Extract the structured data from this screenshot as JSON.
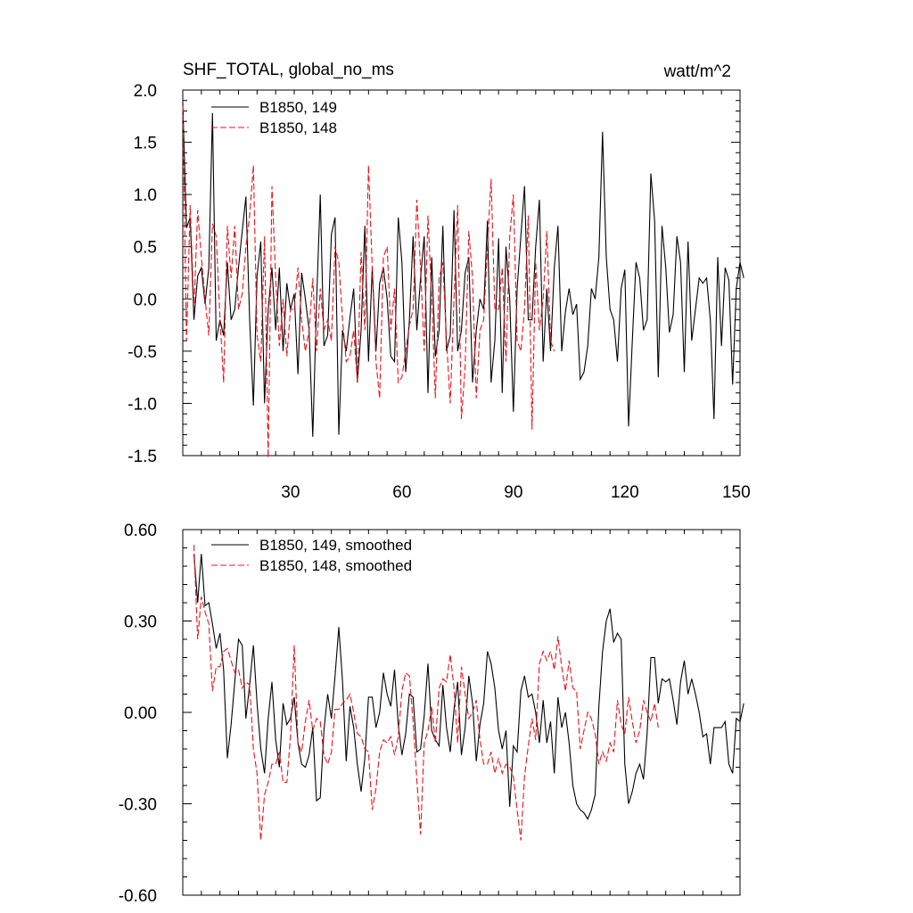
{
  "chart_data": [
    {
      "type": "line",
      "title": "SHF_TOTAL, global_no_ms",
      "units": "watt/m^2",
      "xlim": [
        1,
        151
      ],
      "ylim": [
        -1.5,
        2.0
      ],
      "xticks": [
        30,
        60,
        90,
        120,
        150
      ],
      "xtick_labels": [
        "30",
        "60",
        "90",
        "120",
        "150"
      ],
      "yticks": [
        2.0,
        1.5,
        1.0,
        0.5,
        0.0,
        -0.5,
        -1.0,
        -1.5
      ],
      "ytick_labels": [
        "2.0",
        "1.5",
        "1.0",
        "0.5",
        "0.0",
        "-0.5",
        "-1.0",
        "-1.5"
      ],
      "legend_position": "top-left",
      "series": [
        {
          "name": "B1850, 149",
          "color": "#000000",
          "style": "solid",
          "x0": 1,
          "values": [
            1.88,
            0.68,
            0.78,
            -0.2,
            0.22,
            0.3,
            -0.05,
            0.3,
            1.78,
            -0.4,
            -0.2,
            -0.35,
            0.35,
            -0.2,
            -0.1,
            0.3,
            0.65,
            0.98,
            -0.2,
            -1.02,
            0.22,
            0.55,
            -1.0,
            -0.1,
            0.3,
            -0.3,
            0.3,
            -0.5,
            0.15,
            -0.1,
            0.05,
            -0.72,
            0.25,
            0.0,
            -0.3,
            -1.32,
            -0.05,
            1.0,
            -0.45,
            -0.35,
            0.62,
            0.78,
            -1.3,
            -0.3,
            -0.5,
            -0.18,
            0.1,
            -0.8,
            -0.3,
            0.7,
            -0.6,
            0.3,
            -0.5,
            0.15,
            0.3,
            0.0,
            -0.55,
            -0.6,
            0.78,
            0.35,
            -0.7,
            -0.2,
            0.6,
            -0.3,
            0.2,
            0.6,
            -0.9,
            0.4,
            -0.55,
            -0.3,
            0.7,
            -0.5,
            -0.35,
            0.85,
            -0.5,
            -0.3,
            0.25,
            0.4,
            -0.8,
            -0.3,
            0.0,
            -0.1,
            0.75,
            -0.8,
            -0.4,
            0.58,
            -0.9,
            0.5,
            0.0,
            -1.08,
            0.1,
            0.6,
            1.08,
            -0.2,
            -0.2,
            0.5,
            0.95,
            -0.6,
            0.1,
            -0.5,
            0.3,
            0.7,
            -0.5,
            -0.12,
            0.1,
            -0.15,
            -0.05,
            -0.77,
            -0.7,
            -0.45,
            0.1,
            0.0,
            0.4,
            1.6,
            0.4,
            -0.1,
            -0.2,
            -0.6,
            0.1,
            0.28,
            -1.22,
            -0.4,
            0.35,
            0.2,
            -0.3,
            -0.2,
            1.2,
            0.75,
            -0.75,
            0.7,
            0.3,
            -0.32,
            -0.15,
            0.6,
            0.35,
            -0.7,
            0.55,
            -0.4,
            -0.1,
            0.2,
            0.15,
            0.2,
            -0.2,
            -1.15,
            0.4,
            -0.45,
            0.3,
            0.18,
            -0.82,
            0.1,
            0.35,
            0.2
          ]
        },
        {
          "name": "B1850, 148",
          "color": "#e8141b",
          "style": "dashed",
          "x0": 1,
          "values": [
            1.85,
            -0.4,
            0.9,
            -0.1,
            0.85,
            0.4,
            0.0,
            -0.35,
            0.72,
            0.6,
            -0.18,
            -0.8,
            0.7,
            0.2,
            0.7,
            -0.1,
            0.05,
            0.5,
            0.8,
            1.28,
            -0.35,
            -0.6,
            0.6,
            -1.52,
            1.08,
            0.2,
            -0.45,
            0.0,
            -0.55,
            -0.1,
            -0.1,
            0.3,
            -0.2,
            -0.5,
            -0.3,
            0.2,
            -0.5,
            0.1,
            -0.3,
            -0.2,
            -0.4,
            0.5,
            0.35,
            -0.2,
            -0.6,
            -0.55,
            -0.3,
            -0.8,
            0.45,
            -0.3,
            1.28,
            0.3,
            -0.6,
            -0.95,
            0.4,
            0.5,
            -0.3,
            0.1,
            -0.8,
            -0.75,
            -0.5,
            -0.25,
            -0.1,
            0.95,
            0.3,
            -0.5,
            0.8,
            0.0,
            -0.95,
            0.2,
            0.35,
            -0.4,
            -1.0,
            0.0,
            0.9,
            -1.15,
            -0.65,
            0.65,
            0.2,
            -0.95,
            -0.3,
            -0.2,
            0.5,
            1.15,
            -0.1,
            -0.1,
            0.3,
            -0.6,
            0.6,
            1.0,
            -0.4,
            -0.5,
            -0.1,
            0.8,
            -1.25,
            0.35,
            -0.3,
            0.0,
            0.65,
            -0.4,
            -0.5
          ]
        }
      ]
    },
    {
      "type": "line",
      "title": "",
      "xlim": [
        1,
        151
      ],
      "ylim": [
        -0.6,
        0.6
      ],
      "xticks": [
        30,
        60,
        90,
        120,
        150
      ],
      "xtick_labels": [],
      "yticks": [
        0.6,
        0.3,
        0.0,
        -0.3,
        -0.6
      ],
      "ytick_labels": [
        "0.60",
        "0.30",
        "0.00",
        "-0.30",
        "-0.60"
      ],
      "legend_position": "top-left",
      "series": [
        {
          "name": "B1850, 149, smoothed",
          "color": "#000000",
          "style": "solid",
          "x0": 4,
          "values": [
            0.52,
            0.36,
            0.52,
            0.35,
            0.36,
            0.29,
            0.21,
            0.26,
            0.14,
            -0.15,
            -0.04,
            0.1,
            0.24,
            0.22,
            -0.02,
            0.09,
            0.22,
            0.03,
            -0.12,
            -0.2,
            -0.02,
            0.1,
            -0.09,
            -0.18,
            0.03,
            -0.04,
            -0.02,
            0.05,
            -0.1,
            -0.17,
            -0.18,
            -0.14,
            -0.05,
            -0.29,
            -0.28,
            -0.06,
            0.06,
            -0.02,
            0.12,
            0.28,
            0.1,
            -0.16,
            0.02,
            -0.05,
            -0.17,
            -0.26,
            -0.15,
            0.05,
            0.05,
            -0.05,
            0.0,
            0.13,
            0.06,
            0.02,
            0.14,
            -0.04,
            -0.14,
            -0.07,
            0.06,
            0.05,
            -0.13,
            -0.12,
            -0.01,
            0.16,
            -0.06,
            -0.09,
            -0.11,
            0.09,
            -0.05,
            -0.13,
            0.01,
            0.1,
            -0.14,
            -0.05,
            0.12,
            0.03,
            -0.16,
            -0.04,
            0.03,
            0.2,
            0.16,
            0.08,
            -0.06,
            -0.12,
            -0.06,
            -0.31,
            -0.11,
            -0.13,
            0.07,
            0.12,
            0.05,
            0.06,
            0.0,
            -0.1,
            0.04,
            -0.1,
            -0.03,
            -0.2,
            0.05,
            -0.05,
            0.0,
            -0.1,
            -0.24,
            -0.3,
            -0.32,
            -0.33,
            -0.35,
            -0.32,
            -0.27,
            0.02,
            0.2,
            0.3,
            0.34,
            0.23,
            0.26,
            0.24,
            -0.17,
            -0.3,
            -0.26,
            -0.2,
            -0.17,
            -0.22,
            -0.07,
            0.18,
            0.18,
            0.03,
            0.11,
            0.1,
            0.11,
            0.04,
            -0.04,
            0.1,
            0.17,
            0.06,
            0.11,
            0.06,
            0.0,
            -0.08,
            -0.07,
            -0.17,
            -0.05,
            -0.05,
            -0.05,
            -0.03,
            -0.17,
            -0.2,
            -0.02,
            -0.03,
            0.03
          ]
        },
        {
          "name": "B1850, 148, smoothed",
          "color": "#e8141b",
          "style": "dashed",
          "x0": 4,
          "values": [
            0.55,
            0.24,
            0.38,
            0.33,
            0.29,
            0.07,
            0.15,
            0.15,
            0.2,
            0.21,
            0.17,
            0.13,
            0.14,
            0.08,
            0.1,
            0.09,
            -0.12,
            -0.2,
            -0.42,
            -0.27,
            -0.23,
            -0.17,
            -0.17,
            -0.13,
            -0.23,
            -0.23,
            -0.08,
            0.22,
            -0.1,
            -0.13,
            -0.03,
            0.04,
            -0.06,
            -0.02,
            -0.03,
            -0.14,
            -0.17,
            -0.13,
            0.01,
            0.01,
            0.03,
            0.04,
            0.06,
            0.0,
            -0.07,
            -0.08,
            -0.12,
            -0.13,
            -0.32,
            -0.25,
            -0.13,
            -0.09,
            -0.1,
            -0.08,
            -0.14,
            -0.08,
            0.07,
            0.13,
            0.12,
            -0.03,
            -0.22,
            -0.4,
            -0.1,
            -0.06,
            0.02,
            -0.1,
            0.08,
            0.11,
            0.1,
            0.19,
            0.08,
            -0.1,
            0.15,
            0.06,
            -0.02,
            0.0,
            0.04,
            -0.09,
            -0.17,
            -0.17,
            -0.13,
            -0.2,
            -0.15,
            -0.2,
            -0.17,
            -0.18,
            -0.21,
            -0.32,
            -0.42,
            -0.21,
            -0.11,
            -0.02,
            -0.09,
            0.16,
            0.2,
            0.17,
            0.2,
            0.14,
            0.25,
            0.15,
            0.07,
            0.17,
            0.08,
            0.07,
            -0.12,
            -0.06,
            0.0,
            -0.02,
            -0.07,
            -0.17,
            -0.13,
            -0.16,
            -0.1,
            -0.13,
            0.04,
            -0.04,
            -0.07,
            0.05,
            -0.03,
            -0.1,
            -0.06,
            0.04,
            0.0,
            -0.03,
            0.03,
            -0.05
          ]
        }
      ]
    }
  ]
}
